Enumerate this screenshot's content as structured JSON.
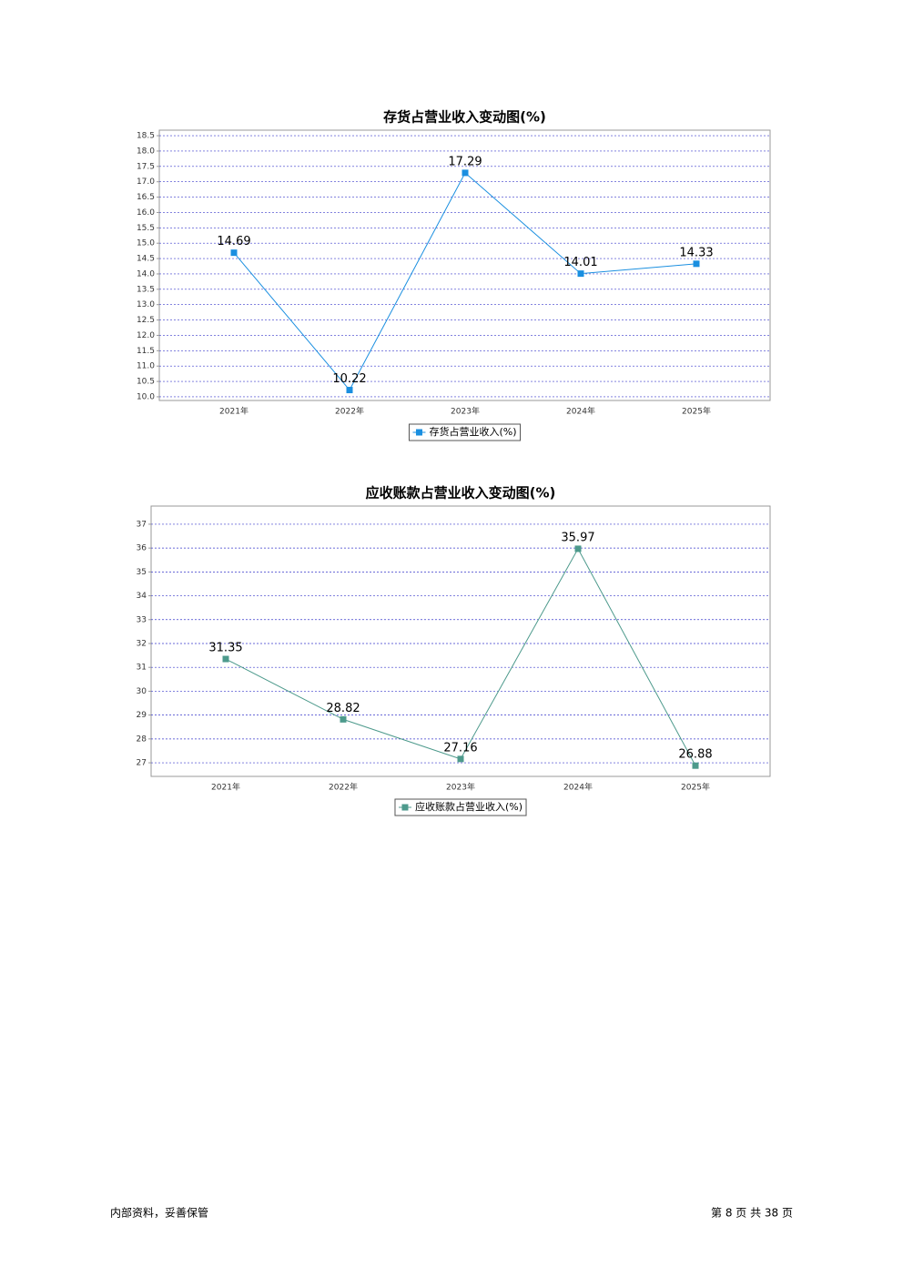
{
  "chart_data": [
    {
      "type": "line",
      "title": "存货占营业收入变动图(%)",
      "categories": [
        "2021年",
        "2022年",
        "2023年",
        "2024年",
        "2025年"
      ],
      "series": [
        {
          "name": "存货占营业收入(%)",
          "color": "#1a8fe0",
          "values": [
            14.69,
            10.22,
            17.29,
            14.01,
            14.33
          ]
        }
      ],
      "ylim": [
        9.88,
        18.68
      ],
      "yticks": [
        {
          "value": 10,
          "label": "10.0"
        },
        10.5,
        {
          "value": 11,
          "label": "11.0"
        },
        11.5,
        {
          "value": 12,
          "label": "12.0"
        },
        12.5,
        {
          "value": 13,
          "label": "13.0"
        },
        13.5,
        {
          "value": 14,
          "label": "14.0"
        },
        14.5,
        {
          "value": 15,
          "label": "15.0"
        },
        15.5,
        {
          "value": 16,
          "label": "16.0"
        },
        16.5,
        {
          "value": 17,
          "label": "17.0"
        },
        17.5,
        {
          "value": 18,
          "label": "18.0"
        },
        18.5
      ],
      "grid": true
    },
    {
      "type": "line",
      "title": "应收账款占营业收入变动图(%)",
      "categories": [
        "2021年",
        "2022年",
        "2023年",
        "2024年",
        "2025年"
      ],
      "series": [
        {
          "name": "应收账款占营业收入(%)",
          "color": "#4d9a8c",
          "values": [
            31.35,
            28.82,
            27.16,
            35.97,
            26.88
          ]
        }
      ],
      "ylim": [
        26.43,
        37.76
      ],
      "yticks": [
        27,
        28,
        29,
        30,
        31,
        32,
        33,
        34,
        35,
        36,
        37
      ],
      "grid": true
    }
  ],
  "footer": {
    "left": "内部资料，妥善保管",
    "right": "第 8 页 共 38 页"
  }
}
